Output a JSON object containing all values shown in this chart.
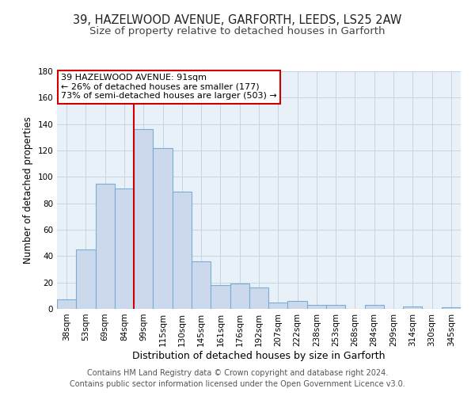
{
  "title1": "39, HAZELWOOD AVENUE, GARFORTH, LEEDS, LS25 2AW",
  "title2": "Size of property relative to detached houses in Garforth",
  "xlabel": "Distribution of detached houses by size in Garforth",
  "ylabel": "Number of detached properties",
  "categories": [
    "38sqm",
    "53sqm",
    "69sqm",
    "84sqm",
    "99sqm",
    "115sqm",
    "130sqm",
    "145sqm",
    "161sqm",
    "176sqm",
    "192sqm",
    "207sqm",
    "222sqm",
    "238sqm",
    "253sqm",
    "268sqm",
    "284sqm",
    "299sqm",
    "314sqm",
    "330sqm",
    "345sqm"
  ],
  "values": [
    7,
    45,
    95,
    91,
    136,
    122,
    89,
    36,
    18,
    19,
    16,
    5,
    6,
    3,
    3,
    0,
    3,
    0,
    2,
    0,
    1
  ],
  "bar_color": "#ccd9ec",
  "bar_edge_color": "#7aadd4",
  "highlight_line_color": "#cc0000",
  "annotation_text_line1": "39 HAZELWOOD AVENUE: 91sqm",
  "annotation_text_line2": "← 26% of detached houses are smaller (177)",
  "annotation_text_line3": "73% of semi-detached houses are larger (503) →",
  "annotation_box_edge_color": "#cc0000",
  "annotation_box_face_color": "#ffffff",
  "ylim": [
    0,
    180
  ],
  "yticks": [
    0,
    20,
    40,
    60,
    80,
    100,
    120,
    140,
    160,
    180
  ],
  "footer_line1": "Contains HM Land Registry data © Crown copyright and database right 2024.",
  "footer_line2": "Contains public sector information licensed under the Open Government Licence v3.0.",
  "background_color": "#ffffff",
  "plot_bg_color": "#e8f0f8",
  "grid_color": "#c8d4e4",
  "title1_fontsize": 10.5,
  "title2_fontsize": 9.5,
  "xlabel_fontsize": 9,
  "ylabel_fontsize": 8.5,
  "tick_fontsize": 7.5,
  "annotation_fontsize": 8,
  "footer_fontsize": 7
}
